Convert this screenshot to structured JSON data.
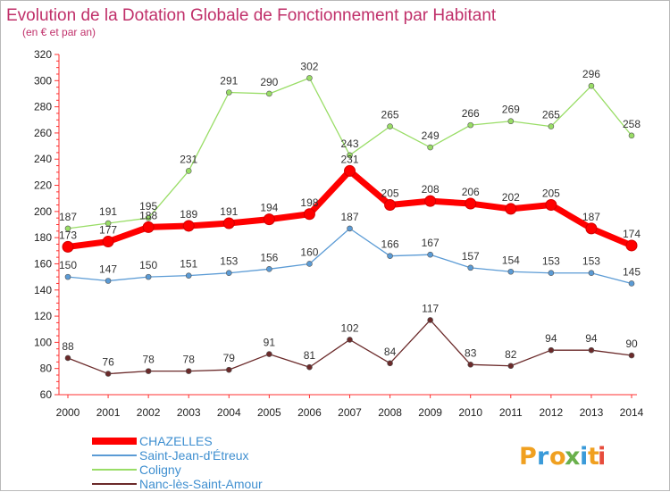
{
  "chart_data": {
    "type": "line",
    "title": "Evolution de la Dotation Globale de Fonctionnement par Habitant",
    "subtitle": "(en € et par an)",
    "xlabel": "",
    "ylabel": "",
    "x": [
      "2000",
      "2001",
      "2002",
      "2003",
      "2004",
      "2005",
      "2006",
      "2007",
      "2008",
      "2009",
      "2010",
      "2011",
      "2012",
      "2013",
      "2014"
    ],
    "ylim": [
      60,
      320
    ],
    "yticks": [
      60,
      80,
      100,
      120,
      140,
      160,
      180,
      200,
      220,
      240,
      260,
      280,
      300,
      320
    ],
    "grid": false,
    "legend_position": "bottom-left",
    "series": [
      {
        "name": "CHAZELLES",
        "color": "#ff0000",
        "values": [
          173,
          177,
          188,
          189,
          191,
          194,
          198,
          231,
          205,
          208,
          206,
          202,
          205,
          187,
          174
        ]
      },
      {
        "name": "Saint-Jean-d'Étreux",
        "color": "#5b9bd5",
        "values": [
          150,
          147,
          150,
          151,
          153,
          156,
          160,
          187,
          166,
          167,
          157,
          154,
          153,
          153,
          145
        ]
      },
      {
        "name": "Coligny",
        "color": "#99dd66",
        "values": [
          187,
          191,
          195,
          231,
          291,
          290,
          302,
          243,
          265,
          249,
          266,
          269,
          265,
          296,
          258
        ]
      },
      {
        "name": "Nanc-lès-Saint-Amour",
        "color": "#6b2a2a",
        "values": [
          88,
          76,
          78,
          78,
          79,
          91,
          81,
          102,
          84,
          117,
          83,
          82,
          94,
          94,
          90
        ]
      }
    ]
  },
  "logo": {
    "letters": [
      "P",
      "r",
      "o",
      "x",
      "i",
      "t",
      "i"
    ],
    "colors": [
      "#f0a020",
      "#3a9ad9",
      "#f0a020",
      "#6ab04c",
      "#3a9ad9",
      "#f0a020",
      "#e74c3c"
    ]
  }
}
